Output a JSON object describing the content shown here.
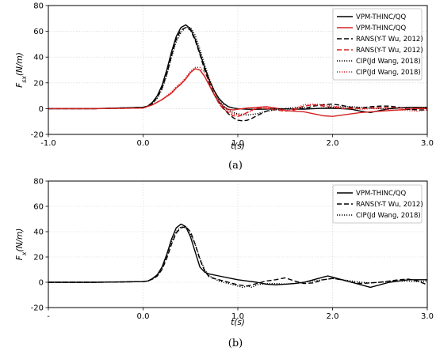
{
  "chart_data": [
    {
      "type": "line",
      "caption": "(a)",
      "ylabel_main": "F",
      "ylabel_sub": "sx",
      "ylabel_unit": "(N/m)",
      "xlabel": "t(s)",
      "xlim": [
        -1.0,
        3.0
      ],
      "ylim": [
        -20,
        80
      ],
      "x_ticks": [
        -1.0,
        0.0,
        1.0,
        2.0,
        3.0
      ],
      "x_tick_labels": [
        "-1.0",
        "0.0",
        "1.0",
        "2.0",
        "3.0"
      ],
      "y_ticks": [
        -20,
        0,
        20,
        40,
        60,
        80
      ],
      "y_tick_labels": [
        "-20",
        "0",
        "20",
        "40",
        "60",
        "80"
      ],
      "grid": true,
      "legend_position": "top-right",
      "series": [
        {
          "name": "VPM-THINC/QQ",
          "color": "#000000",
          "dash": "solid",
          "x": [
            -1.0,
            -0.5,
            0.0,
            0.05,
            0.1,
            0.15,
            0.2,
            0.25,
            0.3,
            0.35,
            0.4,
            0.45,
            0.5,
            0.55,
            0.6,
            0.65,
            0.7,
            0.75,
            0.8,
            0.85,
            0.9,
            0.95,
            1.0,
            1.1,
            1.2,
            1.3,
            1.4,
            1.5,
            1.6,
            1.7,
            1.8,
            1.9,
            2.0,
            2.1,
            2.2,
            2.3,
            2.4,
            2.5,
            2.6,
            2.7,
            2.8,
            2.9,
            3.0
          ],
          "y": [
            0,
            0,
            1,
            2,
            5,
            10,
            18,
            30,
            44,
            56,
            63,
            65,
            62,
            54,
            43,
            32,
            22,
            14,
            8,
            4,
            1.5,
            0.5,
            0,
            -0.5,
            -0.5,
            -0.4,
            -0.2,
            -0.2,
            -0.3,
            -0.4,
            0,
            0.3,
            0.2,
            0,
            -0.5,
            -2,
            -3,
            -1.5,
            0,
            0.5,
            1,
            1,
            1
          ]
        },
        {
          "name": "VPM-THINC/QQ",
          "color": "#d62020",
          "dash": "solid",
          "x": [
            -1.0,
            -0.5,
            0.0,
            0.1,
            0.2,
            0.3,
            0.35,
            0.4,
            0.45,
            0.5,
            0.55,
            0.6,
            0.65,
            0.7,
            0.75,
            0.8,
            0.85,
            0.9,
            0.95,
            1.0,
            1.1,
            1.2,
            1.3,
            1.4,
            1.5,
            1.6,
            1.7,
            1.8,
            1.9,
            2.0,
            2.1,
            2.2,
            2.3,
            2.4,
            2.5,
            2.6,
            2.7,
            2.8,
            2.9,
            3.0
          ],
          "y": [
            0,
            0,
            0.5,
            3,
            7,
            12,
            16,
            19,
            23,
            28,
            31,
            30,
            25,
            18,
            11,
            5,
            1.5,
            -0.5,
            -1,
            -0.5,
            0.5,
            1,
            1.5,
            0.5,
            -1.5,
            -2,
            -2.5,
            -4,
            -5.5,
            -6,
            -5,
            -4,
            -3,
            -2.5,
            -2,
            -1.5,
            -1,
            -0.5,
            0,
            0
          ]
        },
        {
          "name": "RANS(Y-T Wu, 2012)",
          "color": "#000000",
          "dash": "6 3",
          "x": [
            -1.0,
            -0.5,
            0.0,
            0.05,
            0.1,
            0.15,
            0.2,
            0.25,
            0.3,
            0.35,
            0.4,
            0.45,
            0.5,
            0.55,
            0.6,
            0.65,
            0.7,
            0.75,
            0.8,
            0.85,
            0.9,
            0.95,
            1.0,
            1.05,
            1.1,
            1.15,
            1.2,
            1.3,
            1.4,
            1.5,
            1.6,
            1.7,
            1.8,
            1.9,
            2.0,
            2.1,
            2.2,
            2.3,
            2.4,
            2.5,
            2.6,
            2.7,
            2.8,
            2.9,
            3.0
          ],
          "y": [
            0,
            0,
            1,
            2,
            4,
            9,
            16,
            27,
            41,
            54,
            61,
            63,
            61,
            53,
            42,
            30,
            20,
            11,
            5,
            0,
            -4,
            -7,
            -9,
            -9.5,
            -9,
            -7.5,
            -5.5,
            -2,
            0,
            0,
            -0.5,
            0,
            2,
            3,
            3.5,
            2.5,
            1,
            0.5,
            1.5,
            2,
            2,
            1,
            -0.5,
            -1,
            -1
          ]
        },
        {
          "name": "RANS(Y-T Wu, 2012)",
          "color": "#d62020",
          "dash": "6 3",
          "x": [
            -1.0,
            -0.5,
            0.0,
            0.1,
            0.2,
            0.3,
            0.35,
            0.4,
            0.45,
            0.5,
            0.55,
            0.6,
            0.65,
            0.7,
            0.75,
            0.8,
            0.85,
            0.9,
            0.95,
            1.0,
            1.05,
            1.1,
            1.15,
            1.2,
            1.3,
            1.4,
            1.5,
            1.6,
            1.7,
            1.8,
            1.9,
            2.0,
            2.1,
            2.2,
            2.3,
            2.4,
            2.5,
            2.6,
            2.7,
            2.8,
            2.9,
            3.0
          ],
          "y": [
            0,
            0,
            0.5,
            3,
            7,
            12,
            16,
            19,
            23,
            28,
            31,
            30,
            25,
            18,
            11,
            4,
            -0.5,
            -3,
            -5.5,
            -6,
            -5,
            -3,
            -1,
            0.5,
            0,
            -1,
            -2,
            -1,
            2,
            3,
            2,
            1,
            0,
            0.5,
            0,
            0.5,
            1,
            1,
            0.5,
            0,
            0.5,
            1
          ]
        },
        {
          "name": "CIP(Jd Wang, 2018)",
          "color": "#000000",
          "dash": "1.2 1.8",
          "x": [
            -1.0,
            -0.5,
            0.0,
            0.05,
            0.1,
            0.15,
            0.2,
            0.25,
            0.3,
            0.35,
            0.4,
            0.45,
            0.5,
            0.55,
            0.6,
            0.65,
            0.7,
            0.75,
            0.8,
            0.85,
            0.9,
            0.95,
            1.0,
            1.05,
            1.1,
            1.15,
            1.2,
            1.3,
            1.4,
            1.5,
            1.6,
            1.7,
            1.8,
            1.9,
            2.0,
            2.1,
            2.2,
            2.3,
            2.4,
            2.5,
            2.6,
            2.7,
            2.8,
            2.9,
            3.0
          ],
          "y": [
            0,
            0,
            1,
            2,
            4,
            8,
            15,
            26,
            40,
            52,
            59,
            63,
            63,
            57,
            46,
            34,
            23,
            14,
            7,
            2,
            -1,
            -3,
            -4,
            -4.5,
            -5,
            -4.5,
            -4,
            -2,
            -1,
            0,
            1,
            1,
            0,
            0.5,
            1,
            1.5,
            1.5,
            1,
            0.5,
            0,
            0,
            0.5,
            1,
            1,
            0.5
          ]
        },
        {
          "name": "CIP(Jd Wang, 2018)",
          "color": "#d62020",
          "dash": "1.2 1.8",
          "x": [
            -1.0,
            -0.5,
            0.0,
            0.1,
            0.2,
            0.3,
            0.35,
            0.4,
            0.45,
            0.5,
            0.55,
            0.6,
            0.65,
            0.7,
            0.75,
            0.8,
            0.85,
            0.9,
            0.95,
            1.0,
            1.05,
            1.1,
            1.15,
            1.2,
            1.3,
            1.4,
            1.5,
            1.6,
            1.7,
            1.8,
            1.9,
            2.0,
            2.1,
            2.2,
            2.3,
            2.4,
            2.5,
            2.6,
            2.7,
            2.8,
            2.9,
            3.0
          ],
          "y": [
            0,
            0,
            0.5,
            3,
            7,
            13,
            17,
            20,
            24,
            29,
            32,
            32,
            28,
            21,
            13,
            6,
            1,
            -2,
            -4,
            -5,
            -4.5,
            -3,
            -1.5,
            0,
            1,
            0,
            -1,
            0,
            3,
            3.5,
            3,
            2,
            1,
            0,
            -0.5,
            0,
            0,
            -1,
            -1,
            -1.5,
            -2,
            -1
          ]
        }
      ]
    },
    {
      "type": "line",
      "caption": "(b)",
      "ylabel_main": "F",
      "ylabel_sub": "x",
      "ylabel_unit": "(N/m)",
      "xlabel": "t(s)",
      "xlim": [
        -1.0,
        3.0
      ],
      "ylim": [
        -20,
        80
      ],
      "x_ticks": [
        -1.0,
        0.0,
        1.0,
        2.0,
        3.0
      ],
      "x_tick_labels": [
        "-",
        "0.0",
        "1.0",
        "2.0",
        "3.0"
      ],
      "y_ticks": [
        -20,
        0,
        20,
        40,
        60,
        80
      ],
      "y_tick_labels": [
        "-20",
        "0",
        "20",
        "40",
        "60",
        "80"
      ],
      "grid": true,
      "legend_position": "top-right",
      "series": [
        {
          "name": "VPM-THINC/QQ",
          "color": "#000000",
          "dash": "solid",
          "x": [
            -1.0,
            -0.5,
            0.0,
            0.05,
            0.1,
            0.15,
            0.2,
            0.25,
            0.3,
            0.35,
            0.4,
            0.45,
            0.5,
            0.55,
            0.6,
            0.65,
            0.7,
            0.8,
            0.9,
            1.0,
            1.1,
            1.2,
            1.3,
            1.4,
            1.5,
            1.6,
            1.7,
            1.8,
            1.9,
            1.95,
            2.0,
            2.1,
            2.2,
            2.3,
            2.4,
            2.5,
            2.6,
            2.7,
            2.8,
            2.9,
            3.0
          ],
          "y": [
            0,
            0,
            0.5,
            1,
            3,
            6,
            12,
            22,
            34,
            43,
            46,
            44,
            36,
            24,
            12,
            8,
            6.5,
            5,
            3.5,
            2,
            1,
            0,
            -1.5,
            -2,
            -1.5,
            -1,
            0,
            2,
            4,
            5,
            4,
            2,
            0,
            -2,
            -4,
            -2,
            0,
            1,
            2,
            2,
            2
          ]
        },
        {
          "name": "RANS(Y-T Wu, 2012)",
          "color": "#000000",
          "dash": "6 3",
          "x": [
            -1.0,
            -0.5,
            0.0,
            0.05,
            0.1,
            0.15,
            0.2,
            0.25,
            0.3,
            0.35,
            0.4,
            0.45,
            0.5,
            0.55,
            0.6,
            0.65,
            0.7,
            0.8,
            0.9,
            1.0,
            1.1,
            1.2,
            1.3,
            1.4,
            1.5,
            1.6,
            1.7,
            1.8,
            1.9,
            2.0,
            2.1,
            2.2,
            2.3,
            2.4,
            2.5,
            2.6,
            2.7,
            2.8,
            2.9,
            3.0
          ],
          "y": [
            0,
            0,
            0.5,
            1,
            2.5,
            5,
            10,
            19,
            30,
            39,
            43,
            44,
            40,
            30,
            18,
            9,
            4,
            2,
            0,
            -2,
            -3,
            -1,
            1,
            2,
            3.5,
            1,
            -1,
            -0.5,
            2,
            3,
            2,
            0,
            -1,
            -0.5,
            0,
            1,
            2,
            2.5,
            1,
            -2
          ]
        },
        {
          "name": "CIP(Jd Wang, 2018)",
          "color": "#000000",
          "dash": "1.2 1.8",
          "x": [
            -1.0,
            -0.5,
            0.0,
            0.05,
            0.1,
            0.15,
            0.2,
            0.25,
            0.3,
            0.35,
            0.4,
            0.45,
            0.5,
            0.55,
            0.6,
            0.65,
            0.7,
            0.8,
            0.9,
            1.0,
            1.05,
            1.1,
            1.15,
            1.2,
            1.3,
            1.4,
            1.5,
            1.6,
            1.7,
            1.8,
            1.9,
            2.0,
            2.1,
            2.2,
            2.3,
            2.4,
            2.5,
            2.6,
            2.7,
            2.8,
            2.9,
            3.0
          ],
          "y": [
            0,
            0,
            0.5,
            1,
            2.5,
            5,
            11,
            21,
            32,
            40,
            44,
            43,
            38,
            30,
            19,
            10,
            5,
            1,
            -1,
            -3,
            -4,
            -3,
            -4,
            -2,
            -1,
            -1,
            -1.5,
            -1,
            0,
            1,
            2,
            3,
            2,
            1,
            0,
            -0.5,
            0,
            0.5,
            1,
            1,
            0.5,
            1
          ]
        }
      ]
    }
  ]
}
